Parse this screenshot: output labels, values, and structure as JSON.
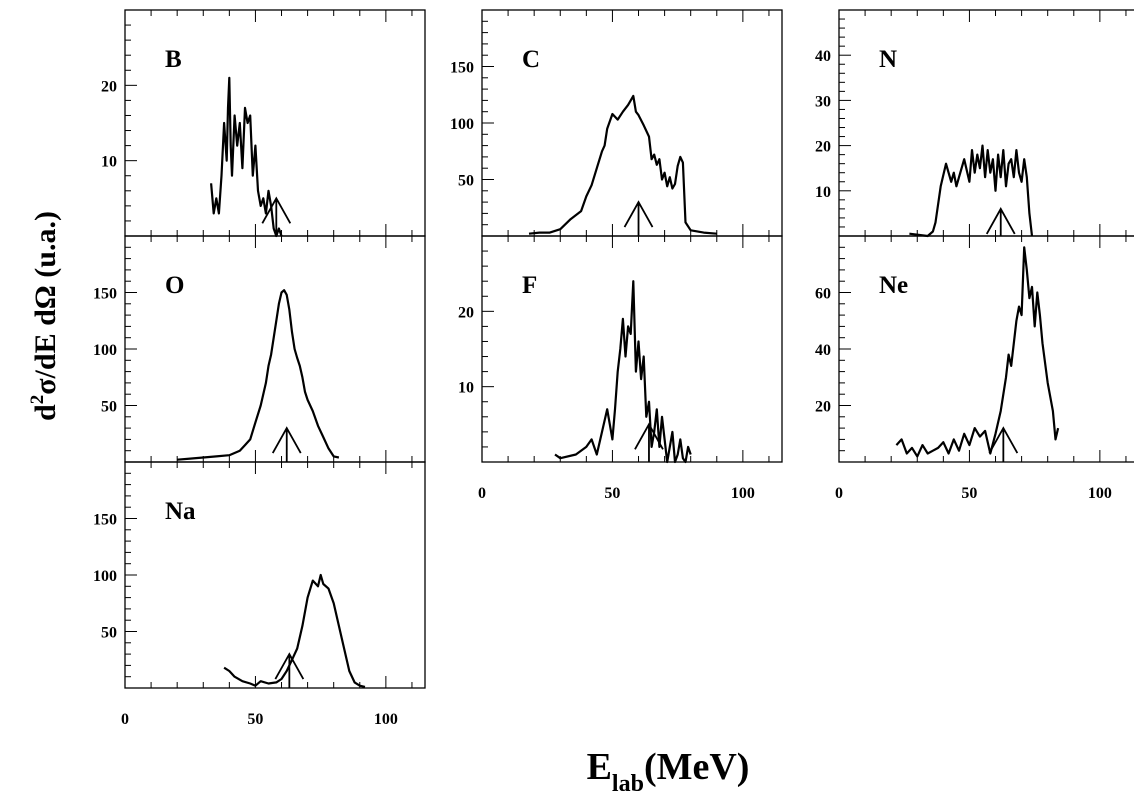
{
  "chart_data": {
    "type": "line",
    "xlabel": "E",
    "xlabel_sub": "lab",
    "xlabel_unit": "(MeV)",
    "ylabel": "d²σ/dE dΩ (u.a.)",
    "panels": [
      {
        "label": "B",
        "xlim": [
          0,
          115
        ],
        "ylim": [
          0,
          30
        ],
        "yticks": [
          10,
          20
        ],
        "xticklabels": [],
        "arrow_x": 58,
        "arrow_h": 5,
        "x": [
          33,
          34,
          35,
          36,
          37,
          38,
          39,
          39.5,
          40,
          40.5,
          41,
          42,
          43,
          44,
          45,
          46,
          47,
          48,
          49,
          50,
          51,
          52,
          53,
          54,
          55,
          56,
          57,
          58,
          59,
          60
        ],
        "y": [
          7,
          3,
          5,
          3,
          8,
          15,
          10,
          17,
          21,
          12,
          8,
          16,
          12,
          15,
          9,
          17,
          15,
          16,
          8,
          12,
          6,
          4,
          5,
          3,
          6,
          4,
          1,
          0,
          1,
          0
        ]
      },
      {
        "label": "C",
        "xlim": [
          0,
          115
        ],
        "ylim": [
          0,
          200
        ],
        "yticks": [
          50,
          100,
          150
        ],
        "xticklabels": [],
        "arrow_x": 60,
        "arrow_h": 30,
        "x": [
          18,
          22,
          26,
          30,
          34,
          38,
          40,
          42,
          44,
          46,
          47,
          48,
          50,
          52,
          54,
          56,
          58,
          59,
          60,
          62,
          64,
          65,
          66,
          67,
          68,
          69,
          70,
          71,
          72,
          73,
          74,
          75,
          76,
          77,
          78,
          80,
          85,
          90
        ],
        "y": [
          2,
          3,
          3,
          6,
          15,
          22,
          35,
          45,
          60,
          75,
          80,
          95,
          108,
          103,
          110,
          116,
          124,
          110,
          107,
          98,
          88,
          68,
          72,
          63,
          68,
          50,
          56,
          44,
          52,
          42,
          46,
          62,
          70,
          65,
          12,
          5,
          3,
          2
        ]
      },
      {
        "label": "N",
        "xlim": [
          0,
          115
        ],
        "ylim": [
          0,
          50
        ],
        "yticks": [
          10,
          20,
          30,
          40
        ],
        "xticklabels": [],
        "arrow_x": 62,
        "arrow_h": 6,
        "x": [
          27,
          34,
          36,
          37,
          38,
          39,
          41,
          43,
          44,
          45,
          46,
          48,
          50,
          51,
          52,
          53,
          54,
          55,
          56,
          57,
          58,
          59,
          60,
          61,
          62,
          63,
          64,
          65,
          66,
          67,
          68,
          69,
          70,
          71,
          72,
          73,
          74
        ],
        "y": [
          0.5,
          0,
          1,
          3,
          7,
          11,
          16,
          12,
          14,
          11,
          13,
          17,
          12,
          19,
          14,
          18,
          15,
          20,
          13,
          19,
          14,
          17,
          10,
          18,
          13,
          19,
          11,
          16,
          17,
          13,
          19,
          14,
          12,
          17,
          13,
          5,
          0
        ]
      },
      {
        "label": "O",
        "xlim": [
          0,
          115
        ],
        "ylim": [
          0,
          200
        ],
        "yticks": [
          50,
          100,
          150
        ],
        "xticklabels": [],
        "arrow_x": 62,
        "arrow_h": 30,
        "x": [
          20,
          25,
          30,
          35,
          40,
          44,
          46,
          48,
          50,
          52,
          54,
          55,
          56,
          57,
          58,
          59,
          60,
          61,
          62,
          63,
          64,
          65,
          66,
          67,
          68,
          69,
          70,
          72,
          74,
          76,
          78,
          80,
          82
        ],
        "y": [
          2,
          3,
          4,
          5,
          6,
          10,
          15,
          20,
          35,
          50,
          70,
          85,
          95,
          110,
          125,
          140,
          150,
          152,
          148,
          135,
          115,
          100,
          92,
          85,
          75,
          62,
          55,
          45,
          32,
          22,
          12,
          5,
          4
        ]
      },
      {
        "label": "F",
        "xlim": [
          0,
          115
        ],
        "ylim": [
          0,
          30
        ],
        "yticks": [
          10,
          20
        ],
        "xticklabels": [
          "0",
          "50",
          "100"
        ],
        "arrow_x": 64,
        "arrow_h": 5,
        "x": [
          28,
          30,
          36,
          40,
          42,
          44,
          46,
          48,
          49,
          50,
          51,
          52,
          53,
          54,
          55,
          56,
          57,
          58,
          59,
          60,
          61,
          62,
          63,
          64,
          65,
          66,
          67,
          68,
          69,
          70,
          71,
          72,
          73,
          74,
          75,
          76,
          77,
          78,
          79,
          80
        ],
        "y": [
          1,
          0.5,
          1,
          2,
          3,
          1,
          4,
          7,
          5,
          3,
          7,
          12,
          15,
          19,
          14,
          18,
          17,
          24,
          12,
          16,
          11,
          14,
          6,
          8,
          2,
          4,
          7,
          2,
          6,
          3,
          0,
          2,
          4,
          0,
          1,
          3,
          0.5,
          0,
          2,
          1
        ]
      },
      {
        "label": "Ne",
        "xlim": [
          0,
          115
        ],
        "ylim": [
          0,
          80
        ],
        "yticks": [
          20,
          40,
          60
        ],
        "xticklabels": [
          "0",
          "50",
          "100"
        ],
        "arrow_x": 63,
        "arrow_h": 12,
        "x": [
          22,
          24,
          26,
          28,
          30,
          32,
          34,
          36,
          38,
          40,
          42,
          44,
          46,
          48,
          50,
          52,
          54,
          56,
          58,
          60,
          62,
          64,
          65,
          66,
          67,
          68,
          69,
          70,
          71,
          72,
          73,
          74,
          75,
          76,
          77,
          78,
          80,
          82,
          83,
          84
        ],
        "y": [
          6,
          8,
          3,
          5,
          2,
          6,
          3,
          4,
          5,
          7,
          3,
          8,
          4,
          10,
          6,
          12,
          9,
          11,
          3,
          10,
          18,
          30,
          38,
          34,
          42,
          50,
          55,
          52,
          76,
          68,
          58,
          62,
          48,
          60,
          52,
          42,
          28,
          18,
          8,
          12
        ]
      },
      {
        "label": "Na",
        "xlim": [
          0,
          115
        ],
        "ylim": [
          0,
          200
        ],
        "yticks": [
          50,
          100,
          150
        ],
        "xticklabels": [
          "0",
          "50",
          "100"
        ],
        "arrow_x": 63,
        "arrow_h": 30,
        "x": [
          38,
          40,
          42,
          45,
          48,
          50,
          52,
          55,
          58,
          60,
          62,
          64,
          66,
          68,
          70,
          72,
          74,
          75,
          76,
          78,
          80,
          82,
          84,
          86,
          88,
          90,
          92
        ],
        "y": [
          18,
          15,
          10,
          6,
          4,
          2,
          6,
          4,
          5,
          8,
          15,
          25,
          35,
          55,
          80,
          95,
          90,
          100,
          92,
          88,
          75,
          55,
          35,
          15,
          5,
          2,
          1
        ]
      }
    ]
  }
}
